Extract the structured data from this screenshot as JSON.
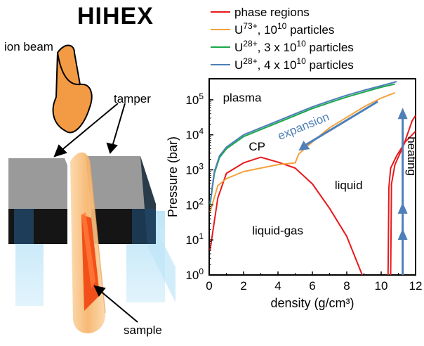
{
  "title": "HIHEX",
  "labels": {
    "ion_beam": "ion beam",
    "tamper": "tamper",
    "sample": "sample"
  },
  "colors": {
    "phase": "#e8191c",
    "u73": "#f4a13c",
    "u28_3": "#1aa84a",
    "u28_4": "#4e7fb8",
    "arrow": "#4e7fb8",
    "beam": "#f29a44",
    "tamper_top": "#a0a0a0",
    "tamper_front": "#1a1a1a",
    "sample": "#f2501a"
  },
  "chart_data": {
    "type": "line",
    "xlabel": "density (g/cm³)",
    "ylabel": "Pressure (bar)",
    "xlim": [
      0,
      12
    ],
    "ylim_log10": [
      0,
      5.6
    ],
    "y_scale": "log",
    "x_ticks": [
      "0",
      "2",
      "4",
      "6",
      "8",
      "10",
      "12"
    ],
    "y_tick_labels": [
      {
        "base": "10",
        "exp": "0"
      },
      {
        "base": "10",
        "exp": "1"
      },
      {
        "base": "10",
        "exp": "2"
      },
      {
        "base": "10",
        "exp": "3"
      },
      {
        "base": "10",
        "exp": "4"
      },
      {
        "base": "10",
        "exp": "5"
      }
    ],
    "legend": [
      {
        "key": "phase",
        "text": "phase regions",
        "sup": "",
        "suffix": ""
      },
      {
        "key": "u73",
        "text": "U",
        "sup": "73+",
        "suffix": ", 10",
        "sup2": "10",
        "tail": " particles"
      },
      {
        "key": "u28_3",
        "text": "U",
        "sup": "28+",
        "suffix": ", 3 x 10",
        "sup2": "10",
        "tail": " particles"
      },
      {
        "key": "u28_4",
        "text": "U",
        "sup": "28+",
        "suffix": ", 4 x 10",
        "sup2": "10",
        "tail": " particles"
      }
    ],
    "annotations": {
      "plasma": "plasma",
      "cp": "CP",
      "liquid": "liquid",
      "liquid_gas": "liquid-gas",
      "expansion": "expansion",
      "heating": "heating"
    },
    "series": [
      {
        "key": "phase",
        "name": "phase regions",
        "segment": "dome",
        "points": [
          [
            0.05,
            0.7
          ],
          [
            0.5,
            2.2
          ],
          [
            1,
            2.9
          ],
          [
            2,
            3.2
          ],
          [
            3,
            3.36
          ],
          [
            4,
            3.22
          ],
          [
            5,
            3.05
          ],
          [
            6,
            2.6
          ],
          [
            7,
            1.9
          ],
          [
            8,
            1.1
          ],
          [
            8.9,
            0.0
          ]
        ]
      },
      {
        "key": "phase",
        "name": "phase regions",
        "segment": "melt-1",
        "points": [
          [
            10.4,
            0.0
          ],
          [
            10.45,
            2.5
          ],
          [
            10.55,
            3.05
          ],
          [
            10.9,
            3.4
          ],
          [
            11.4,
            3.8
          ],
          [
            12,
            4.1
          ]
        ]
      },
      {
        "key": "phase",
        "name": "phase regions",
        "segment": "melt-2",
        "points": [
          [
            10.55,
            0.0
          ],
          [
            10.6,
            2.6
          ],
          [
            10.8,
            3.15
          ],
          [
            11.3,
            3.7
          ],
          [
            11.8,
            4.4
          ],
          [
            12,
            4.55
          ]
        ]
      },
      {
        "key": "u73",
        "name": "U73+, 10^10 particles",
        "points": [
          [
            0.05,
            1.8
          ],
          [
            0.5,
            2.55
          ],
          [
            1,
            2.75
          ],
          [
            2,
            2.95
          ],
          [
            3,
            3.05
          ],
          [
            4,
            3.15
          ],
          [
            5,
            3.2
          ],
          [
            5.2,
            3.45
          ],
          [
            6,
            3.8
          ],
          [
            7,
            4.2
          ],
          [
            8,
            4.5
          ],
          [
            9,
            4.8
          ],
          [
            10,
            5.05
          ],
          [
            10.8,
            5.2
          ]
        ]
      },
      {
        "key": "u28_3",
        "name": "U28+, 3 x 10^10 particles",
        "points": [
          [
            0.05,
            2.0
          ],
          [
            0.3,
            2.9
          ],
          [
            0.6,
            3.35
          ],
          [
            1,
            3.6
          ],
          [
            2,
            3.95
          ],
          [
            3,
            4.15
          ],
          [
            4,
            4.35
          ],
          [
            5,
            4.55
          ],
          [
            6,
            4.75
          ],
          [
            7,
            4.92
          ],
          [
            8,
            5.08
          ],
          [
            9,
            5.22
          ],
          [
            10,
            5.36
          ],
          [
            10.8,
            5.45
          ]
        ]
      },
      {
        "key": "u28_4",
        "name": "U28+, 4 x 10^10 particles",
        "points": [
          [
            0.05,
            2.05
          ],
          [
            0.3,
            2.95
          ],
          [
            0.6,
            3.4
          ],
          [
            1,
            3.65
          ],
          [
            2,
            4.0
          ],
          [
            3,
            4.2
          ],
          [
            4,
            4.4
          ],
          [
            5,
            4.6
          ],
          [
            6,
            4.8
          ],
          [
            7,
            4.97
          ],
          [
            8,
            5.13
          ],
          [
            9,
            5.27
          ],
          [
            10,
            5.4
          ],
          [
            10.9,
            5.52
          ]
        ]
      }
    ],
    "grid": false
  }
}
